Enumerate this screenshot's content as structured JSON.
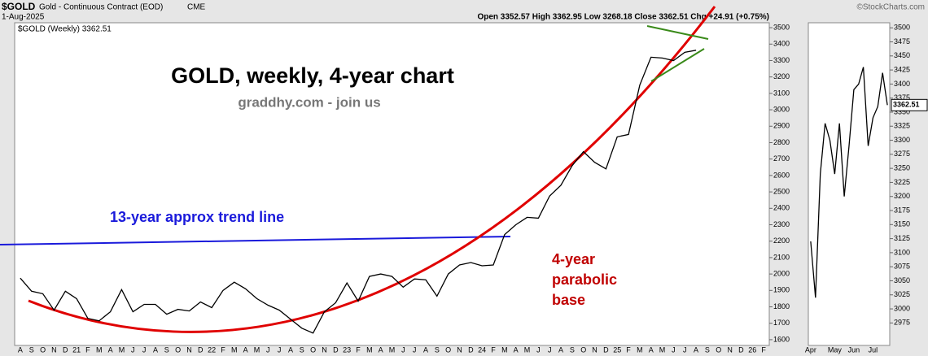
{
  "header": {
    "symbol": "$GOLD",
    "name": "Gold - Continuous Contract (EOD)",
    "exchange": "CME",
    "date": "1-Aug-2025",
    "ohlc": "Open 3352.57  High 3362.95  Low 3268.18  Close 3362.51  Chg +24.91 (+0.75%)",
    "source": "©StockCharts.com"
  },
  "chart_data": [
    {
      "type": "line",
      "legend": "$GOLD (Weekly) 3362.51",
      "title": "GOLD, weekly, 4-year chart",
      "subtitle": "graddhy.com - join us",
      "annotations": {
        "trend": "13-year approx trend line",
        "base": [
          "4-year",
          "parabolic",
          "base"
        ]
      },
      "color": "#000000",
      "categories": [
        "A",
        "S",
        "O",
        "N",
        "D",
        "21",
        "F",
        "M",
        "A",
        "M",
        "J",
        "J",
        "A",
        "S",
        "O",
        "N",
        "D",
        "22",
        "F",
        "M",
        "A",
        "M",
        "J",
        "J",
        "A",
        "S",
        "O",
        "N",
        "D",
        "23",
        "F",
        "M",
        "A",
        "M",
        "J",
        "J",
        "A",
        "S",
        "O",
        "N",
        "D",
        "24",
        "F",
        "M",
        "A",
        "M",
        "J",
        "J",
        "A",
        "S",
        "O",
        "N",
        "D",
        "25",
        "F",
        "M",
        "A",
        "M",
        "J",
        "J",
        "A",
        "S",
        "O",
        "N",
        "D",
        "26",
        "F"
      ],
      "values": [
        1975,
        1895,
        1880,
        1780,
        1895,
        1850,
        1730,
        1715,
        1770,
        1905,
        1770,
        1815,
        1815,
        1755,
        1785,
        1775,
        1830,
        1795,
        1900,
        1950,
        1910,
        1850,
        1810,
        1780,
        1725,
        1670,
        1640,
        1770,
        1825,
        1945,
        1835,
        1985,
        2000,
        1985,
        1920,
        1970,
        1965,
        1865,
        2000,
        2055,
        2070,
        2050,
        2055,
        2240,
        2300,
        2345,
        2340,
        2475,
        2540,
        2660,
        2745,
        2680,
        2640,
        2835,
        2850,
        3150,
        3320,
        3315,
        3300,
        3350,
        3362.51,
        null,
        null,
        null,
        null,
        null,
        null
      ],
      "ylim": [
        1565,
        3530
      ],
      "yticks": [
        1600,
        1700,
        1800,
        1900,
        2000,
        2100,
        2200,
        2300,
        2400,
        2500,
        2600,
        2700,
        2800,
        2900,
        3000,
        3100,
        3200,
        3300,
        3400,
        3500
      ]
    },
    {
      "type": "line",
      "color": "#000000",
      "categories": [
        "Apr",
        null,
        null,
        null,
        null,
        "May",
        null,
        null,
        null,
        "Jun",
        null,
        null,
        null,
        "Jul",
        null,
        null,
        null
      ],
      "values": [
        3120,
        3020,
        3240,
        3330,
        3300,
        3240,
        3330,
        3200,
        3290,
        3390,
        3400,
        3430,
        3290,
        3340,
        3360,
        3420,
        3362.51
      ],
      "ylim": [
        2935,
        3509
      ],
      "yticks": [
        2975,
        3000,
        3025,
        3050,
        3075,
        3100,
        3125,
        3150,
        3175,
        3200,
        3225,
        3250,
        3275,
        3300,
        3325,
        3350,
        3375,
        3400,
        3425,
        3450,
        3475,
        3500
      ]
    }
  ]
}
